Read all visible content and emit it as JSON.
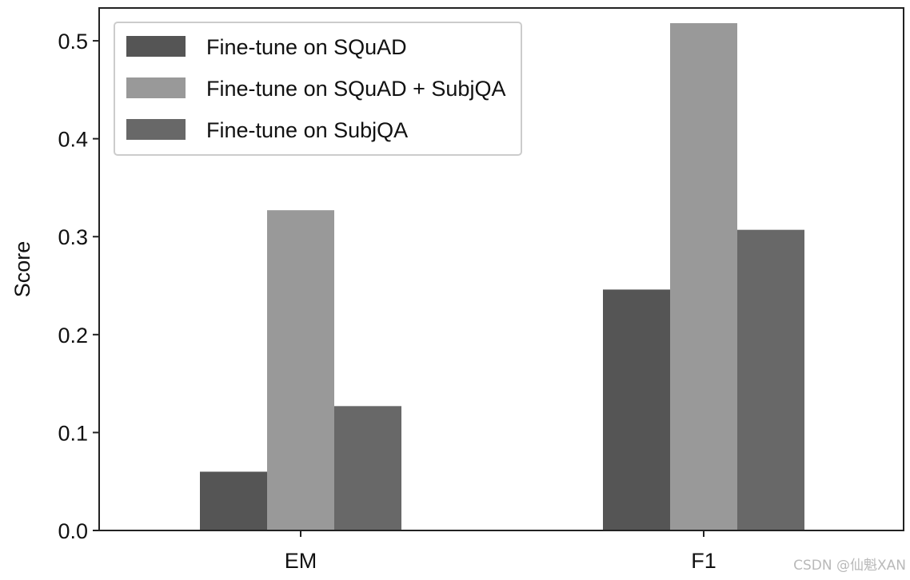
{
  "chart_data": {
    "type": "bar",
    "categories": [
      "EM",
      "F1"
    ],
    "series": [
      {
        "name": "Fine-tune on SQuAD",
        "values": [
          0.06,
          0.246
        ],
        "color": "#555555"
      },
      {
        "name": "Fine-tune on SQuAD + SubjQA",
        "values": [
          0.327,
          0.518
        ],
        "color": "#999999"
      },
      {
        "name": "Fine-tune on SubjQA",
        "values": [
          0.127,
          0.307
        ],
        "color": "#686868"
      }
    ],
    "title": "",
    "xlabel": "",
    "ylabel": "Score",
    "ylim": [
      0,
      0.5335
    ],
    "yticks": [
      "0.0",
      "0.1",
      "0.2",
      "0.3",
      "0.4",
      "0.5"
    ],
    "legend": "top-left",
    "grid": false
  },
  "watermark": "CSDN @仙魁XAN"
}
